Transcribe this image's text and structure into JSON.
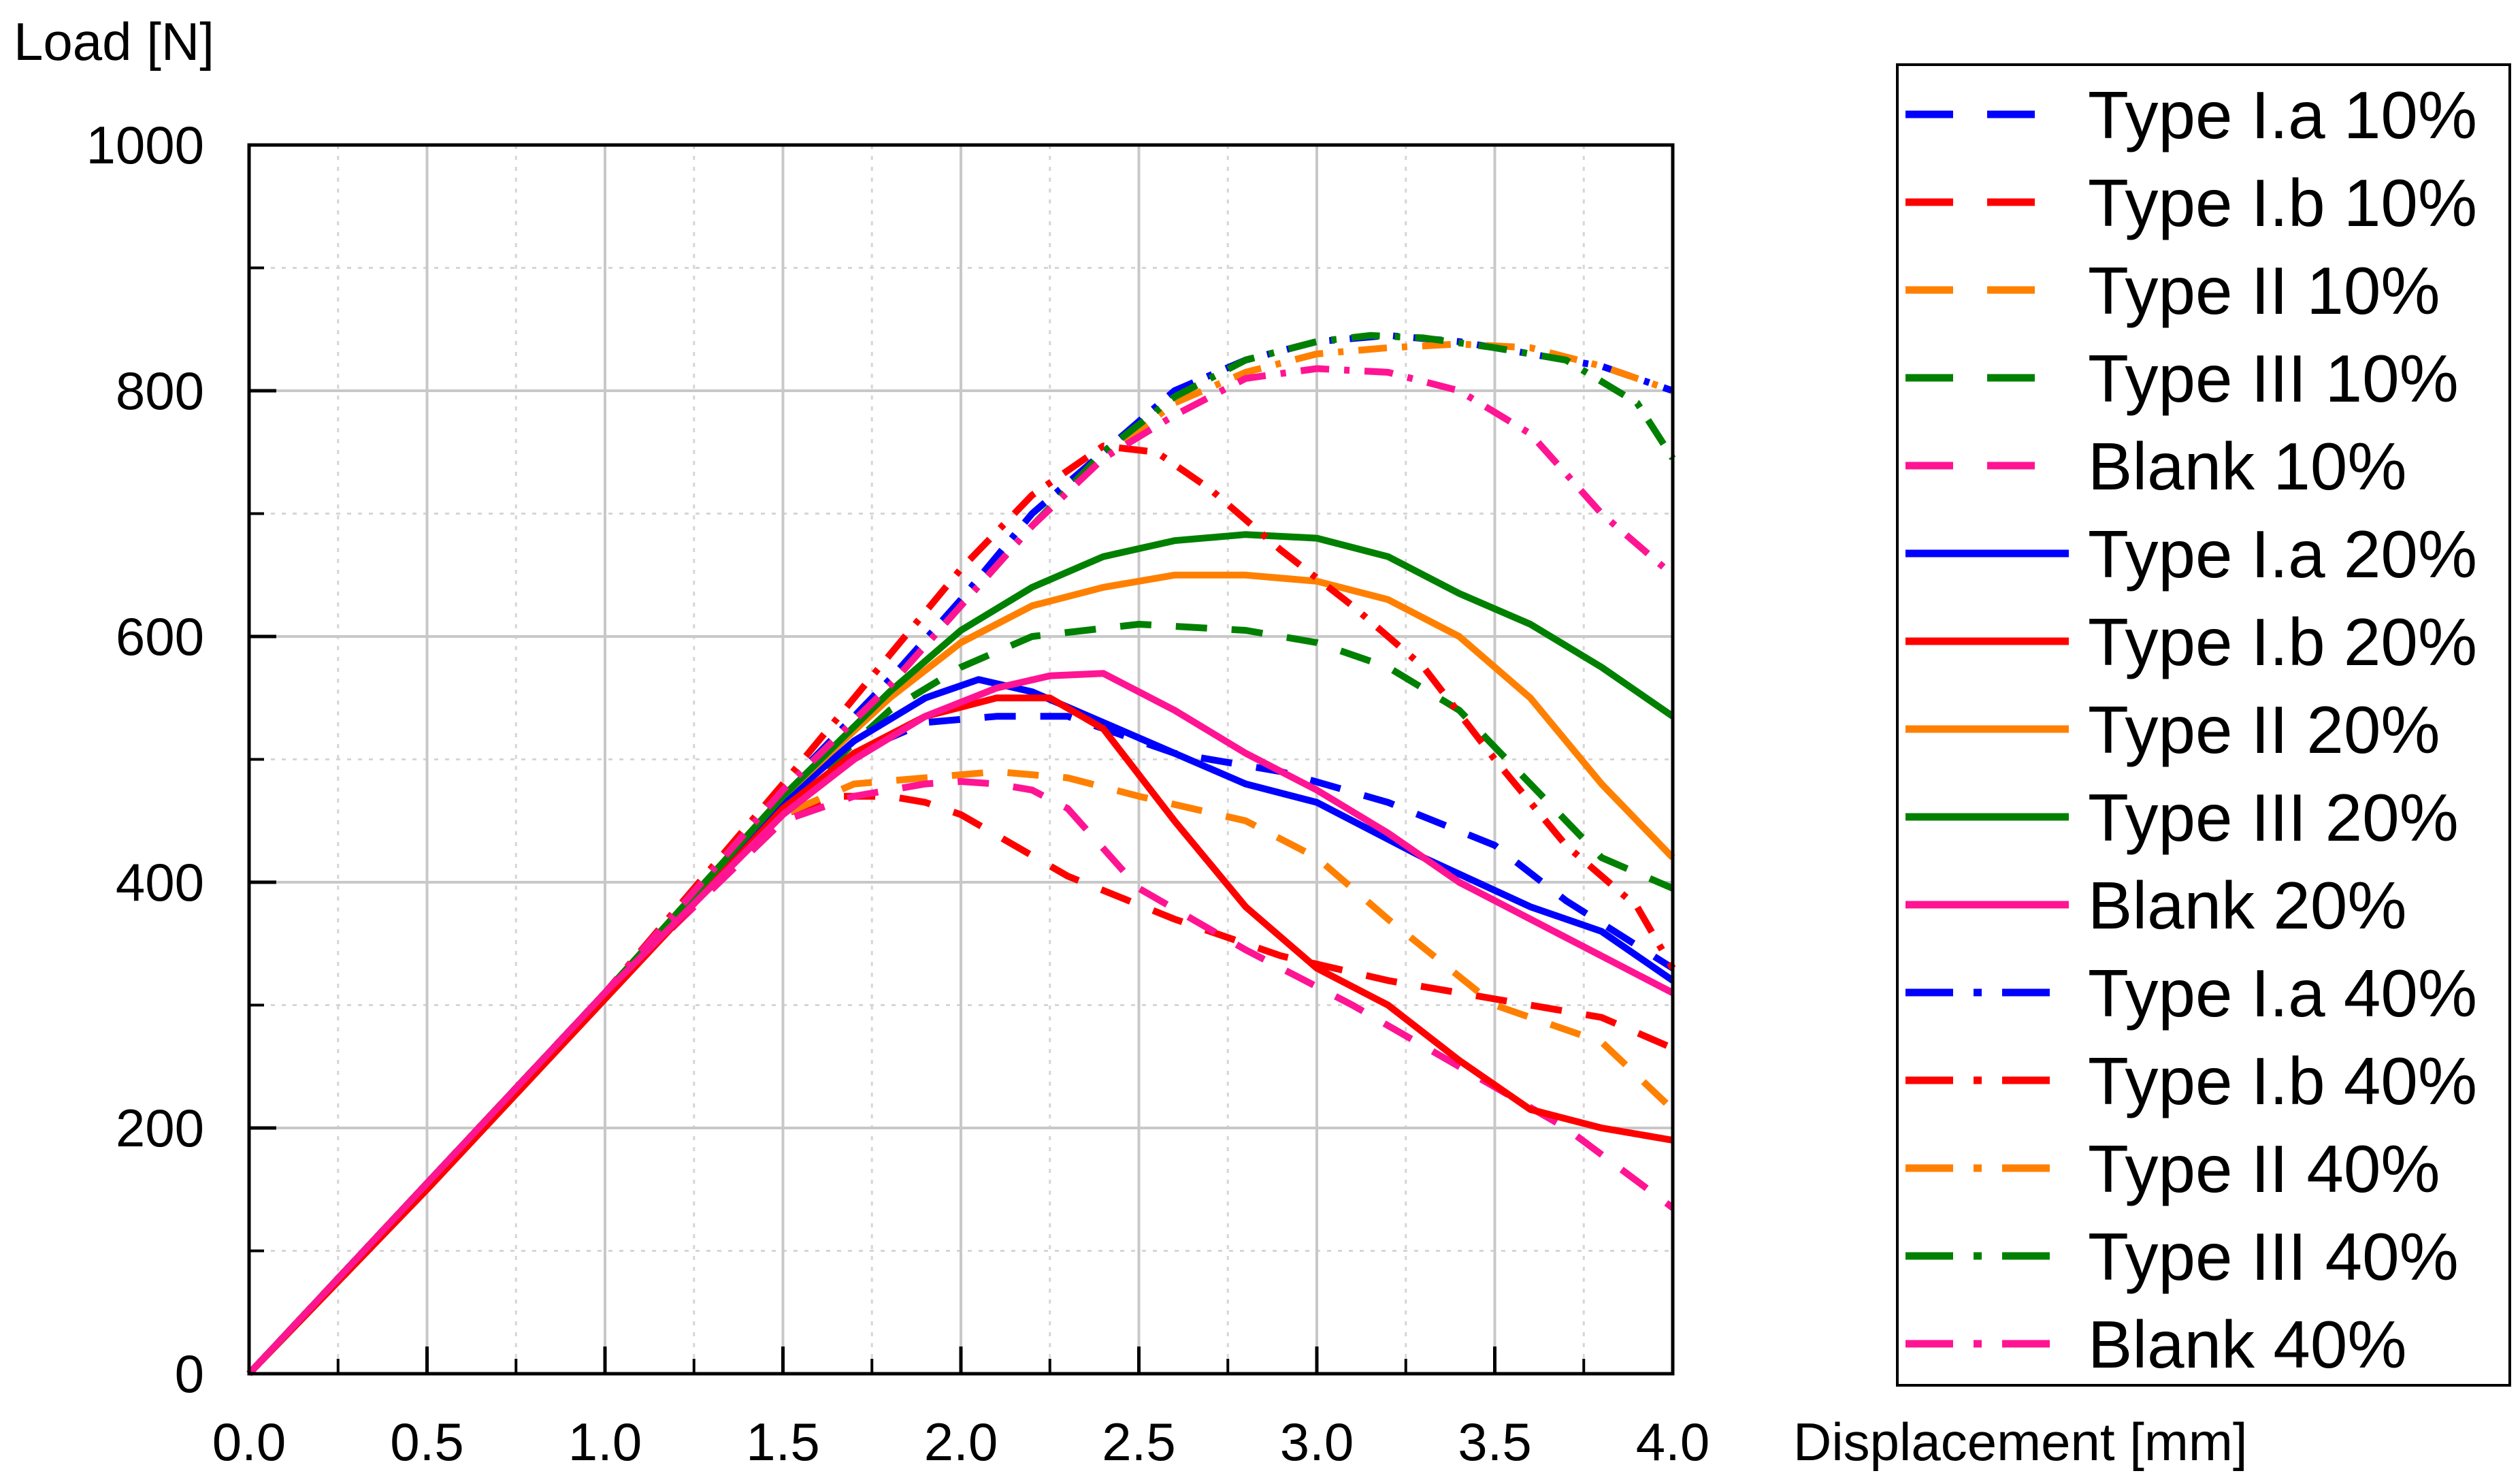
{
  "chart_data": {
    "type": "line",
    "title": "",
    "xlabel": "Displacement [mm]",
    "ylabel": "Load [N]",
    "xlim": [
      0,
      4
    ],
    "ylim": [
      0,
      1000
    ],
    "xticks": [
      "0.0",
      "0.5",
      "1.0",
      "1.5",
      "2.0",
      "2.5",
      "3.0",
      "3.5",
      "4.0"
    ],
    "yticks": [
      "0",
      "200",
      "400",
      "600",
      "800",
      "1000"
    ],
    "grid": true,
    "legend_position": "right",
    "series": [
      {
        "name": "Type I.a 10%",
        "color": "#0000ff",
        "style": "dash",
        "x": [
          0,
          0.5,
          1.0,
          1.5,
          1.7,
          1.9,
          2.1,
          2.3,
          2.6,
          2.9,
          3.2,
          3.5,
          3.7,
          4.0
        ],
        "y": [
          0,
          155,
          310,
          460,
          505,
          530,
          535,
          535,
          505,
          490,
          465,
          430,
          385,
          330
        ]
      },
      {
        "name": "Type I.b 10%",
        "color": "#ff0000",
        "style": "dash",
        "x": [
          0,
          0.5,
          1.0,
          1.5,
          1.65,
          1.8,
          1.9,
          2.0,
          2.15,
          2.3,
          2.6,
          2.9,
          3.2,
          3.5,
          3.8,
          4.0
        ],
        "y": [
          0,
          155,
          310,
          455,
          470,
          470,
          465,
          455,
          430,
          405,
          370,
          340,
          320,
          305,
          290,
          265
        ]
      },
      {
        "name": "Type II 10%",
        "color": "#ff8000",
        "style": "dash",
        "x": [
          0,
          0.5,
          1.0,
          1.5,
          1.7,
          1.9,
          2.1,
          2.3,
          2.5,
          2.8,
          3.0,
          3.2,
          3.5,
          3.8,
          4.0
        ],
        "y": [
          0,
          155,
          310,
          455,
          480,
          485,
          490,
          485,
          470,
          450,
          420,
          370,
          300,
          270,
          215
        ]
      },
      {
        "name": "Type III 10%",
        "color": "#008000",
        "style": "dash",
        "x": [
          0,
          0.5,
          1.0,
          1.5,
          1.8,
          2.0,
          2.2,
          2.5,
          2.8,
          3.0,
          3.2,
          3.4,
          3.6,
          3.8,
          4.0
        ],
        "y": [
          0,
          155,
          310,
          460,
          540,
          575,
          600,
          610,
          605,
          595,
          575,
          540,
          480,
          420,
          395
        ]
      },
      {
        "name": "Blank 10%",
        "color": "#ff1493",
        "style": "dash",
        "x": [
          0,
          0.5,
          1.0,
          1.5,
          1.7,
          1.8,
          1.9,
          2.0,
          2.1,
          2.2,
          2.3,
          2.5,
          2.8,
          3.1,
          3.4,
          3.7,
          4.0
        ],
        "y": [
          0,
          155,
          310,
          450,
          470,
          475,
          480,
          482,
          480,
          475,
          460,
          395,
          345,
          300,
          250,
          200,
          135
        ]
      },
      {
        "name": "Type I.a 20%",
        "color": "#0000ff",
        "style": "solid",
        "x": [
          0,
          0.5,
          1.0,
          1.5,
          1.7,
          1.9,
          2.05,
          2.2,
          2.4,
          2.6,
          2.8,
          3.0,
          3.3,
          3.6,
          3.8,
          4.0
        ],
        "y": [
          0,
          155,
          310,
          465,
          515,
          550,
          565,
          555,
          530,
          505,
          480,
          465,
          420,
          380,
          360,
          320
        ]
      },
      {
        "name": "Type I.b 20%",
        "color": "#ff0000",
        "style": "solid",
        "x": [
          0,
          0.5,
          1.0,
          1.5,
          1.7,
          1.9,
          2.1,
          2.25,
          2.4,
          2.6,
          2.8,
          3.0,
          3.2,
          3.4,
          3.6,
          3.8,
          4.0
        ],
        "y": [
          0,
          150,
          305,
          460,
          505,
          535,
          550,
          550,
          525,
          450,
          380,
          330,
          300,
          255,
          215,
          200,
          190
        ]
      },
      {
        "name": "Type II 20%",
        "color": "#ff8000",
        "style": "solid",
        "x": [
          0,
          0.5,
          1.0,
          1.5,
          1.8,
          2.0,
          2.2,
          2.4,
          2.6,
          2.8,
          3.0,
          3.2,
          3.4,
          3.6,
          3.8,
          4.0
        ],
        "y": [
          0,
          155,
          310,
          470,
          550,
          595,
          625,
          640,
          650,
          650,
          645,
          630,
          600,
          550,
          480,
          420
        ]
      },
      {
        "name": "Type III 20%",
        "color": "#008000",
        "style": "solid",
        "x": [
          0,
          0.5,
          1.0,
          1.5,
          1.8,
          2.0,
          2.2,
          2.4,
          2.6,
          2.8,
          3.0,
          3.2,
          3.4,
          3.6,
          3.8,
          4.0
        ],
        "y": [
          0,
          155,
          310,
          470,
          555,
          605,
          640,
          665,
          678,
          683,
          680,
          665,
          635,
          610,
          575,
          535
        ]
      },
      {
        "name": "Blank 20%",
        "color": "#ff1493",
        "style": "solid",
        "x": [
          0,
          0.5,
          1.0,
          1.5,
          1.7,
          1.9,
          2.1,
          2.25,
          2.4,
          2.6,
          2.8,
          3.0,
          3.2,
          3.4,
          3.6,
          3.8,
          4.0
        ],
        "y": [
          0,
          155,
          310,
          455,
          500,
          535,
          558,
          568,
          570,
          540,
          505,
          475,
          440,
          400,
          370,
          340,
          310
        ]
      },
      {
        "name": "Type I.a 40%",
        "color": "#0000ff",
        "style": "dashdot",
        "x": [
          0,
          0.5,
          1.0,
          1.5,
          1.8,
          2.0,
          2.2,
          2.4,
          2.6,
          2.8,
          3.0,
          3.2,
          3.4,
          3.6,
          3.8,
          4.0
        ],
        "y": [
          0,
          155,
          310,
          475,
          565,
          630,
          700,
          750,
          800,
          825,
          840,
          845,
          840,
          830,
          820,
          800
        ]
      },
      {
        "name": "Type I.b 40%",
        "color": "#ff0000",
        "style": "dashdot",
        "x": [
          0,
          0.5,
          1.0,
          1.5,
          1.8,
          2.0,
          2.2,
          2.4,
          2.55,
          2.7,
          2.9,
          3.1,
          3.3,
          3.5,
          3.7,
          3.9,
          4.0
        ],
        "y": [
          0,
          155,
          310,
          480,
          585,
          655,
          715,
          755,
          750,
          720,
          670,
          625,
          575,
          500,
          430,
          380,
          330
        ]
      },
      {
        "name": "Type II 40%",
        "color": "#ff8000",
        "style": "dashdot",
        "x": [
          0,
          0.5,
          1.0,
          1.5,
          1.8,
          2.0,
          2.2,
          2.4,
          2.6,
          2.8,
          3.0,
          3.2,
          3.4,
          3.6,
          3.8,
          4.0
        ],
        "y": [
          0,
          155,
          310,
          475,
          560,
          625,
          690,
          745,
          790,
          815,
          830,
          835,
          838,
          835,
          820,
          800
        ]
      },
      {
        "name": "Type III 40%",
        "color": "#008000",
        "style": "dashdot",
        "x": [
          0,
          0.5,
          1.0,
          1.5,
          1.8,
          2.0,
          2.2,
          2.4,
          2.6,
          2.8,
          3.0,
          3.15,
          3.3,
          3.5,
          3.7,
          3.9,
          4.0
        ],
        "y": [
          0,
          155,
          310,
          475,
          560,
          625,
          690,
          750,
          795,
          825,
          840,
          845,
          843,
          835,
          825,
          790,
          745
        ]
      },
      {
        "name": "Blank 40%",
        "color": "#ff1493",
        "style": "dashdot",
        "x": [
          0,
          0.5,
          1.0,
          1.5,
          1.8,
          2.0,
          2.2,
          2.4,
          2.6,
          2.8,
          3.0,
          3.2,
          3.4,
          3.6,
          3.8,
          4.0
        ],
        "y": [
          0,
          155,
          310,
          475,
          560,
          625,
          690,
          745,
          780,
          810,
          818,
          815,
          800,
          765,
          700,
          650
        ]
      }
    ]
  }
}
